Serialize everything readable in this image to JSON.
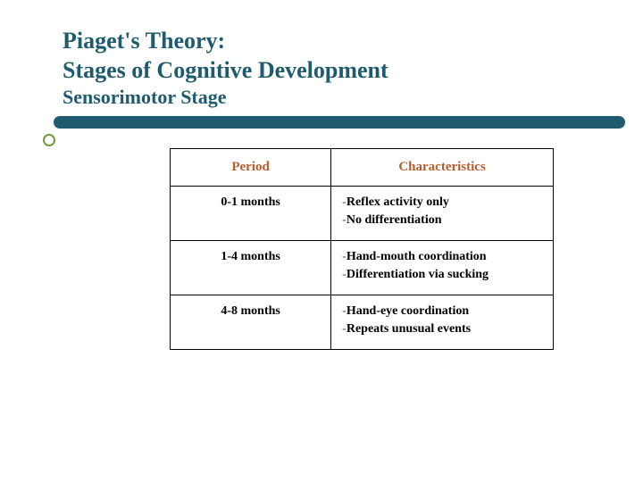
{
  "title_line1": "Piaget's Theory:",
  "title_line2": "Stages of Cognitive Development",
  "subtitle": "Sensorimotor Stage",
  "colors": {
    "heading": "#1f5b6e",
    "divider": "#1f5b6e",
    "bullet_ring": "#6f9b3c",
    "table_header": "#b85c2e",
    "border": "#000000",
    "text": "#000000",
    "background": "#ffffff"
  },
  "typography": {
    "title_fontsize": 26,
    "subtitle_fontsize": 22,
    "header_fontsize": 15,
    "cell_fontsize": 14,
    "title_family": "Georgia",
    "body_family": "Georgia"
  },
  "table": {
    "headers": {
      "col1": "Period",
      "col2": "Characteristics"
    },
    "rows": [
      {
        "period": "0-1 months",
        "char1": "Reflex activity only",
        "char2": "No differentiation"
      },
      {
        "period": "1-4 months",
        "char1": "Hand-mouth coordination",
        "char2": "Differentiation via sucking"
      },
      {
        "period": "4-8 months",
        "char1": "Hand-eye coordination",
        "char2": "Repeats unusual events"
      }
    ]
  }
}
